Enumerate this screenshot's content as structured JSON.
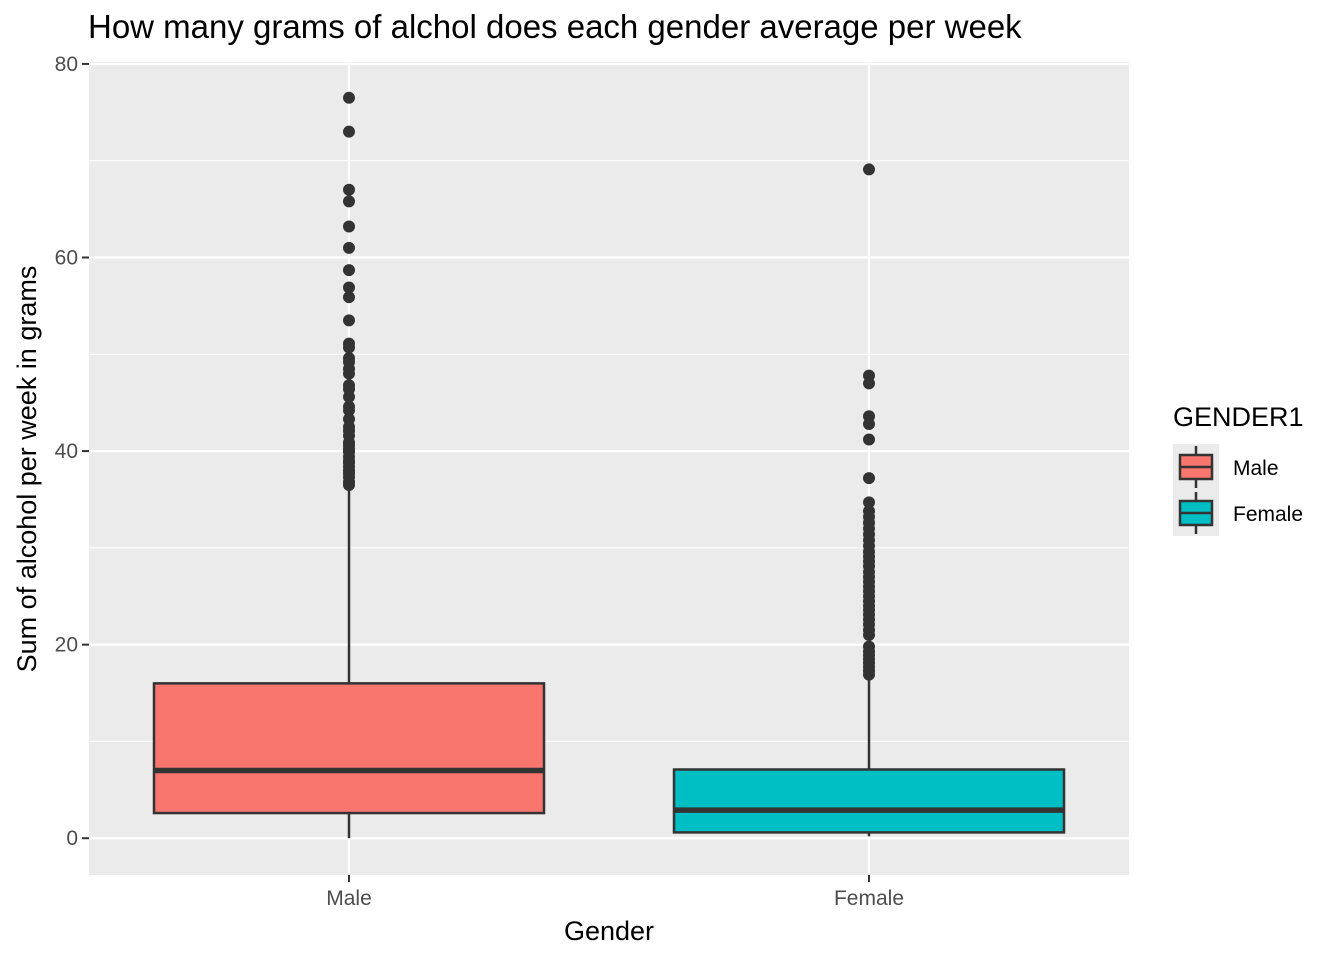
{
  "chart_data": {
    "type": "box",
    "title": "How many grams of alchol does each gender average per week",
    "xlabel": "Gender",
    "ylabel": "Sum of alcohol per week in grams",
    "ylim": [
      -3.8,
      80.2
    ],
    "yticks": [
      0,
      20,
      40,
      60,
      80
    ],
    "grid": true,
    "legend": {
      "title": "GENDER1",
      "position": "right"
    },
    "categories": [
      "Male",
      "Female"
    ],
    "series": [
      {
        "name": "Male",
        "color": "#F8766D",
        "min": 0,
        "q1": 2.6,
        "median": 7.0,
        "q3": 16.0,
        "whisker_high": 36.3,
        "outliers": [
          76.5,
          73.0,
          67.0,
          65.8,
          63.2,
          61.0,
          58.7,
          56.9,
          55.9,
          53.5,
          51.1,
          50.7,
          49.6,
          49.2,
          48.5,
          48.0,
          46.8,
          46.4,
          45.6,
          44.6,
          44.2,
          43.3,
          42.5,
          42.1,
          41.6,
          40.9,
          40.6,
          40.2,
          39.9,
          39.4,
          39.0,
          38.8,
          38.4,
          38.0,
          37.7,
          37.3,
          36.8,
          36.5
        ]
      },
      {
        "name": "Female",
        "color": "#00BFC4",
        "min": 0.2,
        "q1": 0.6,
        "median": 2.9,
        "q3": 7.1,
        "whisker_high": 16.8,
        "outliers": [
          69.1,
          47.8,
          47.0,
          43.6,
          42.8,
          41.2,
          37.2,
          34.7,
          33.8,
          33.2,
          32.6,
          32.0,
          31.4,
          30.8,
          30.2,
          29.6,
          29.1,
          28.6,
          28.1,
          27.5,
          27.0,
          26.5,
          26.0,
          25.5,
          25.0,
          24.5,
          24.0,
          23.6,
          23.1,
          22.6,
          22.1,
          21.5,
          21.0,
          19.8,
          19.3,
          18.9,
          18.5,
          18.1,
          17.7,
          17.3,
          16.9
        ]
      }
    ]
  }
}
